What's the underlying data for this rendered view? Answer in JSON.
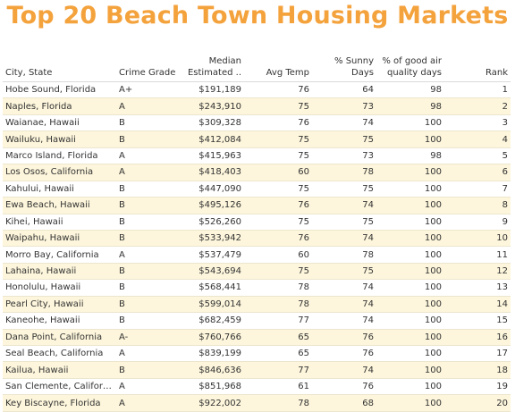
{
  "header": {
    "title": "Top 20 Beach Town Housing Markets"
  },
  "chart_data": {
    "type": "table",
    "title": "Top 20 Beach Town Housing Markets",
    "columns": [
      "City, State",
      "Crime Grade",
      "Median Estimated ..",
      "Avg Temp",
      "% Sunny Days",
      "% of good air quality days",
      "Rank"
    ],
    "rows": [
      [
        "Hobe Sound, Florida",
        "A+",
        "$191,189",
        "76",
        "64",
        "98",
        "1"
      ],
      [
        "Naples, Florida",
        "A",
        "$243,910",
        "75",
        "73",
        "98",
        "2"
      ],
      [
        "Waianae, Hawaii",
        "B",
        "$309,328",
        "76",
        "74",
        "100",
        "3"
      ],
      [
        "Wailuku, Hawaii",
        "B",
        "$412,084",
        "75",
        "75",
        "100",
        "4"
      ],
      [
        "Marco Island, Florida",
        "A",
        "$415,963",
        "75",
        "73",
        "98",
        "5"
      ],
      [
        "Los Osos, California",
        "A",
        "$418,403",
        "60",
        "78",
        "100",
        "6"
      ],
      [
        "Kahului, Hawaii",
        "B",
        "$447,090",
        "75",
        "75",
        "100",
        "7"
      ],
      [
        "Ewa Beach, Hawaii",
        "B",
        "$495,126",
        "76",
        "74",
        "100",
        "8"
      ],
      [
        "Kihei, Hawaii",
        "B",
        "$526,260",
        "75",
        "75",
        "100",
        "9"
      ],
      [
        "Waipahu, Hawaii",
        "B",
        "$533,942",
        "76",
        "74",
        "100",
        "10"
      ],
      [
        "Morro Bay, California",
        "A",
        "$537,479",
        "60",
        "78",
        "100",
        "11"
      ],
      [
        "Lahaina, Hawaii",
        "B",
        "$543,694",
        "75",
        "75",
        "100",
        "12"
      ],
      [
        "Honolulu, Hawaii",
        "B",
        "$568,441",
        "78",
        "74",
        "100",
        "13"
      ],
      [
        "Pearl City, Hawaii",
        "B",
        "$599,014",
        "78",
        "74",
        "100",
        "14"
      ],
      [
        "Kaneohe, Hawaii",
        "B",
        "$682,459",
        "77",
        "74",
        "100",
        "15"
      ],
      [
        "Dana Point, California",
        "A-",
        "$760,766",
        "65",
        "76",
        "100",
        "16"
      ],
      [
        "Seal Beach, California",
        "A",
        "$839,199",
        "65",
        "76",
        "100",
        "17"
      ],
      [
        "Kailua, Hawaii",
        "B",
        "$846,636",
        "77",
        "74",
        "100",
        "18"
      ],
      [
        "San Clemente, Californ..",
        "A",
        "$851,968",
        "61",
        "76",
        "100",
        "19"
      ],
      [
        "Key Biscayne, Florida",
        "A",
        "$922,002",
        "78",
        "68",
        "100",
        "20"
      ]
    ]
  },
  "colors": {
    "title": "#F4A23C",
    "stripe": "#FDF6DC"
  }
}
